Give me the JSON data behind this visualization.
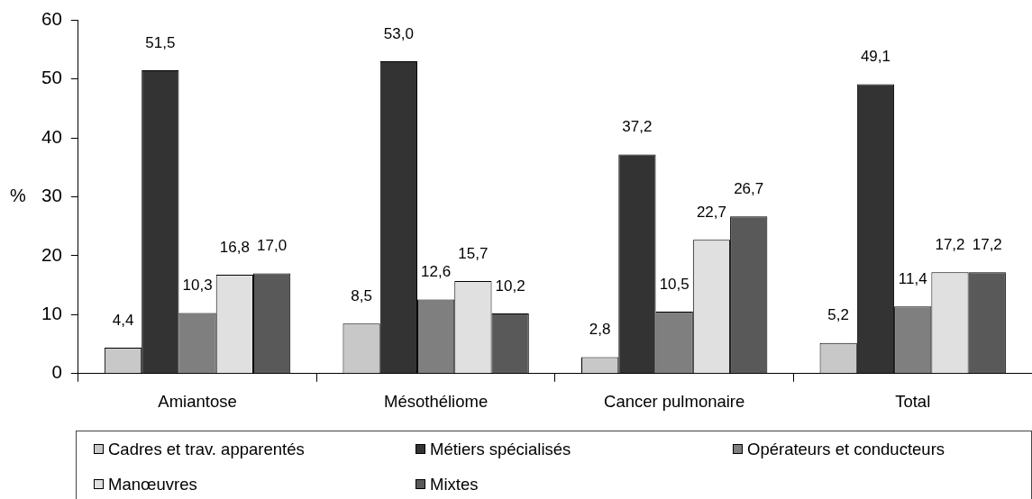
{
  "chart_data": {
    "type": "bar",
    "ylabel": "%",
    "categories": [
      "Amiantose",
      "Mésothéliome",
      "Cancer pulmonaire",
      "Total"
    ],
    "series": [
      {
        "name": "Cadres et trav. apparentés",
        "color": "#c8c8c8",
        "values": [
          4.4,
          8.5,
          2.8,
          5.2
        ],
        "value_labels": [
          "4,4",
          "8,5",
          "2,8",
          "5,2"
        ]
      },
      {
        "name": "Métiers spécialisés",
        "color": "#333333",
        "values": [
          51.5,
          53.0,
          37.2,
          49.1
        ],
        "value_labels": [
          "51,5",
          "53,0",
          "37,2",
          "49,1"
        ]
      },
      {
        "name": "Opérateurs et conducteurs",
        "color": "#7f7f7f",
        "values": [
          10.3,
          12.6,
          10.5,
          11.4
        ],
        "value_labels": [
          "10,3",
          "12,6",
          "10,5",
          "11,4"
        ]
      },
      {
        "name": "Manœuvres",
        "color": "#e0e0e0",
        "values": [
          16.8,
          15.7,
          22.7,
          17.2
        ],
        "value_labels": [
          "16,8",
          "15,7",
          "22,7",
          "17,2"
        ]
      },
      {
        "name": "Mixtes",
        "color": "#595959",
        "values": [
          17.0,
          10.2,
          26.7,
          17.2
        ],
        "value_labels": [
          "17,0",
          "10,2",
          "26,7",
          "17,2"
        ]
      }
    ],
    "ylim": [
      0,
      60
    ],
    "yticks": [
      0,
      10,
      20,
      30,
      40,
      50,
      60
    ],
    "grid": false,
    "legend": "bottom"
  }
}
